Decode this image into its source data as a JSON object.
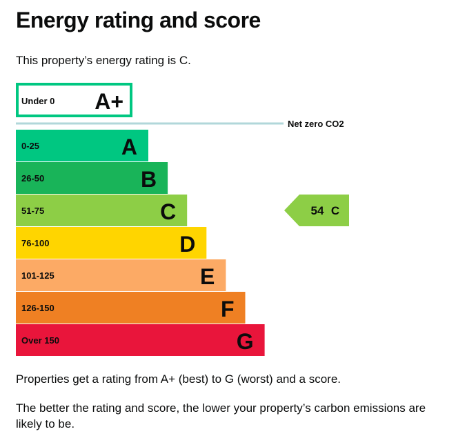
{
  "page_title": "Energy rating and score",
  "intro_text": "This property’s energy rating is C.",
  "chart_data": {
    "type": "bar",
    "title": "",
    "net_zero_label": "Net zero CO2",
    "bands": [
      {
        "range": "Under 0",
        "letter": "A+",
        "color": "#00c781",
        "outline": true
      },
      {
        "range": "0-25",
        "letter": "A",
        "color": "#00c781",
        "outline": false
      },
      {
        "range": "26-50",
        "letter": "B",
        "color": "#19b459",
        "outline": false
      },
      {
        "range": "51-75",
        "letter": "C",
        "color": "#8dce46",
        "outline": false
      },
      {
        "range": "76-100",
        "letter": "D",
        "color": "#ffd500",
        "outline": false
      },
      {
        "range": "101-125",
        "letter": "E",
        "color": "#fcaa65",
        "outline": false
      },
      {
        "range": "126-150",
        "letter": "F",
        "color": "#ef8023",
        "outline": false
      },
      {
        "range": "Over 150",
        "letter": "G",
        "color": "#e9153b",
        "outline": false
      }
    ],
    "current": {
      "score": 54,
      "letter": "C",
      "score_label": "54",
      "band_index": 3,
      "color": "#8dce46"
    },
    "net_zero_line_color": "#b1d7da"
  },
  "footer": {
    "line1": "Properties get a rating from A+ (best) to G (worst) and a score.",
    "line2": "The better the rating and score, the lower your property’s carbon emissions are likely to be."
  }
}
